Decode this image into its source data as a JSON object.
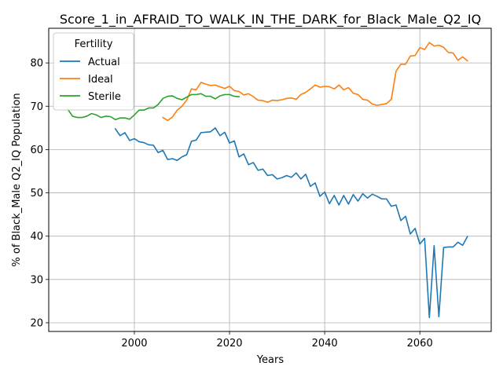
{
  "chart_data": {
    "type": "line",
    "title": "Score_1_in_AFRAID_TO_WALK_IN_THE_DARK_for_Black_Male_Q2_IQ",
    "xlabel": "Years",
    "ylabel": "% of Black_Male Q2_IQ Population",
    "xlim": [
      1982,
      2075
    ],
    "ylim": [
      18,
      88
    ],
    "xticks": [
      2000,
      2020,
      2040,
      2060
    ],
    "yticks": [
      20,
      30,
      40,
      50,
      60,
      70,
      80
    ],
    "grid": true,
    "legend": {
      "title": "Fertility",
      "placement": "top-left"
    },
    "series": [
      {
        "name": "Actual",
        "color": "#1f77b4",
        "x": [
          1996,
          1997,
          1998,
          1999,
          2000,
          2001,
          2002,
          2003,
          2004,
          2005,
          2006,
          2007,
          2008,
          2009,
          2010,
          2011,
          2012,
          2013,
          2014,
          2015,
          2016,
          2017,
          2018,
          2019,
          2020,
          2021,
          2022,
          2023,
          2024,
          2025,
          2026,
          2027,
          2028,
          2029,
          2030,
          2031,
          2032,
          2033,
          2034,
          2035,
          2036,
          2037,
          2038,
          2039,
          2040,
          2041,
          2042,
          2043,
          2044,
          2045,
          2046,
          2047,
          2048,
          2049,
          2050,
          2051,
          2052,
          2053,
          2054,
          2055,
          2056,
          2057,
          2058,
          2059,
          2060,
          2061,
          2062,
          2063,
          2064,
          2065,
          2066,
          2067,
          2068,
          2069,
          2070
        ],
        "values": [
          64.8,
          63.2,
          63.9,
          62.1,
          62.5,
          61.8,
          61.6,
          61.1,
          61.0,
          59.3,
          59.8,
          57.7,
          57.9,
          57.5,
          58.3,
          58.8,
          61.9,
          62.2,
          63.9,
          64.0,
          64.1,
          65.0,
          63.2,
          64.0,
          61.5,
          62.0,
          58.3,
          59.0,
          56.5,
          57.0,
          55.2,
          55.5,
          54.0,
          54.2,
          53.2,
          53.5,
          54.0,
          53.6,
          54.6,
          53.2,
          54.3,
          51.5,
          52.3,
          49.2,
          50.2,
          47.5,
          49.4,
          47.2,
          49.4,
          47.4,
          49.6,
          48.1,
          49.8,
          48.8,
          49.7,
          49.2,
          48.6,
          48.6,
          46.9,
          47.2,
          43.6,
          44.6,
          40.5,
          41.8,
          38.2,
          39.5,
          21.2,
          37.8,
          21.4,
          37.4,
          37.5,
          37.5,
          38.6,
          37.9,
          39.9
        ]
      },
      {
        "name": "Ideal",
        "color": "#ff7f0e",
        "x": [
          2006,
          2007,
          2008,
          2009,
          2010,
          2011,
          2012,
          2013,
          2014,
          2015,
          2016,
          2017,
          2018,
          2019,
          2020,
          2021,
          2022,
          2023,
          2024,
          2025,
          2026,
          2027,
          2028,
          2029,
          2030,
          2031,
          2032,
          2033,
          2034,
          2035,
          2036,
          2037,
          2038,
          2039,
          2040,
          2041,
          2042,
          2043,
          2044,
          2045,
          2046,
          2047,
          2048,
          2049,
          2050,
          2051,
          2052,
          2053,
          2054,
          2055,
          2056,
          2057,
          2058,
          2059,
          2060,
          2061,
          2062,
          2063,
          2064,
          2065,
          2066,
          2067,
          2068,
          2069,
          2070
        ],
        "values": [
          67.4,
          66.7,
          67.5,
          69.1,
          70.0,
          71.4,
          74.0,
          73.8,
          75.5,
          75.1,
          74.8,
          74.9,
          74.5,
          74.1,
          74.6,
          73.6,
          73.4,
          72.6,
          72.9,
          72.2,
          71.4,
          71.3,
          70.9,
          71.4,
          71.3,
          71.5,
          71.8,
          71.9,
          71.6,
          72.7,
          73.2,
          74.0,
          74.9,
          74.4,
          74.6,
          74.5,
          74.0,
          74.9,
          73.8,
          74.3,
          73.0,
          72.7,
          71.6,
          71.4,
          70.5,
          70.2,
          70.4,
          70.6,
          71.6,
          78.1,
          79.7,
          79.7,
          81.6,
          81.7,
          83.5,
          83.1,
          84.7,
          83.9,
          84.1,
          83.6,
          82.4,
          82.3,
          80.6,
          81.4,
          80.5
        ]
      },
      {
        "name": "Sterile",
        "color": "#2ca02c",
        "x": [
          1986,
          1987,
          1988,
          1989,
          1990,
          1991,
          1992,
          1993,
          1994,
          1995,
          1996,
          1997,
          1998,
          1999,
          2000,
          2001,
          2002,
          2003,
          2004,
          2005,
          2006,
          2007,
          2008,
          2009,
          2010,
          2011,
          2012,
          2013,
          2014,
          2015,
          2016,
          2017,
          2018,
          2019,
          2020,
          2021,
          2022
        ],
        "values": [
          69.3,
          67.7,
          67.4,
          67.4,
          67.7,
          68.3,
          68.0,
          67.4,
          67.7,
          67.6,
          66.9,
          67.3,
          67.3,
          67.0,
          68.0,
          69.1,
          69.1,
          69.6,
          69.6,
          70.4,
          71.8,
          72.3,
          72.4,
          71.8,
          71.5,
          72.1,
          72.7,
          72.7,
          72.9,
          72.3,
          72.3,
          71.7,
          72.4,
          72.7,
          72.7,
          72.3,
          72.2
        ]
      }
    ]
  }
}
